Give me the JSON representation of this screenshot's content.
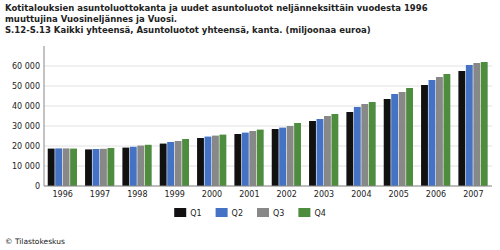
{
  "chart_data": {
    "type": "bar",
    "title": [
      "Kotitalouksien asuntoluottokanta ja uudet asuntoluotot neljänneksittäin vuodesta 1996",
      "muuttujina Vuosineljännes ja Vuosi.",
      "S.12-S.13 Kaikki yhteensä, Asuntoluotot yhteensä, kanta. (miljoonaa euroa)"
    ],
    "annotations": [
      "© Tilastokeskus"
    ],
    "categories": [
      "1996",
      "1997",
      "1998",
      "1999",
      "2000",
      "2001",
      "2002",
      "2003",
      "2004",
      "2005",
      "2006",
      "2007"
    ],
    "series": [
      {
        "name": "Q1",
        "color": "#111111",
        "values": [
          18700,
          18300,
          19200,
          21200,
          24000,
          26000,
          28500,
          32500,
          37000,
          43500,
          50500,
          57500
        ]
      },
      {
        "name": "Q2",
        "color": "#4472c4",
        "values": [
          18800,
          18500,
          19600,
          22000,
          24700,
          26700,
          29200,
          33500,
          39500,
          46000,
          53000,
          60500
        ]
      },
      {
        "name": "Q3",
        "color": "#888888",
        "values": [
          18800,
          18600,
          20200,
          22500,
          25200,
          27500,
          30000,
          35000,
          41000,
          47000,
          54500,
          61500
        ]
      },
      {
        "name": "Q4",
        "color": "#4e8c3e",
        "values": [
          18700,
          19000,
          20600,
          23500,
          25700,
          28200,
          31500,
          36000,
          42000,
          49000,
          56000,
          62000
        ]
      }
    ],
    "ylim": [
      0,
      70000
    ],
    "yticks": [
      0,
      {
        "value": 10000,
        "label": "10 000"
      },
      {
        "value": 20000,
        "label": "20 000"
      },
      {
        "value": 30000,
        "label": "30 000"
      },
      {
        "value": 40000,
        "label": "40 000"
      },
      {
        "value": 50000,
        "label": "50 000"
      },
      {
        "value": 60000,
        "label": "60 000"
      }
    ],
    "grid": true,
    "legend": "bottom"
  }
}
